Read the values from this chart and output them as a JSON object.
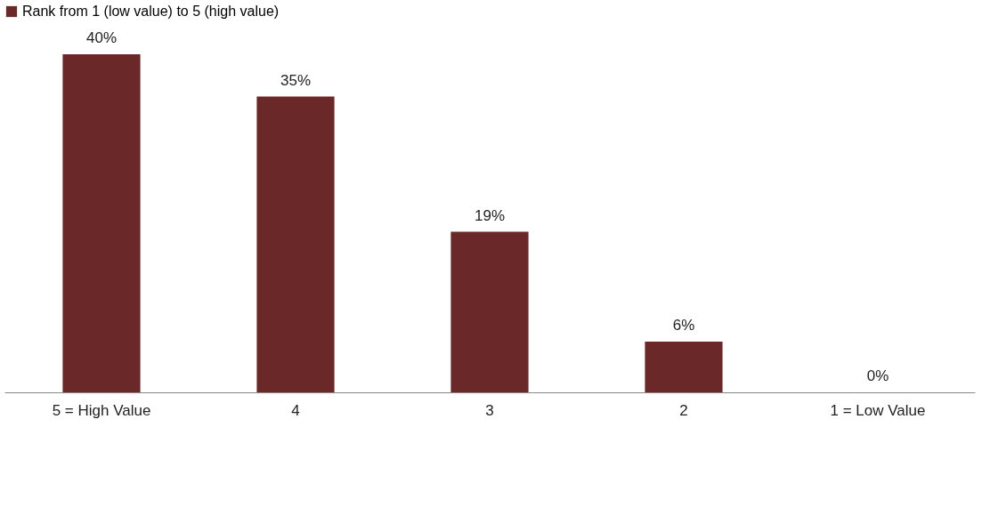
{
  "chart_data": {
    "type": "bar",
    "categories": [
      "5 = High Value",
      "4",
      "3",
      "2",
      "1 = Low Value"
    ],
    "series": [
      {
        "name": "Rank from 1 (low value) to 5 (high value)",
        "color": "#6b2828",
        "values": [
          40,
          35,
          19,
          6,
          0
        ],
        "value_labels": [
          "40%",
          "35%",
          "19%",
          "6%",
          "0%"
        ]
      }
    ],
    "legend": "top",
    "grid": false
  }
}
